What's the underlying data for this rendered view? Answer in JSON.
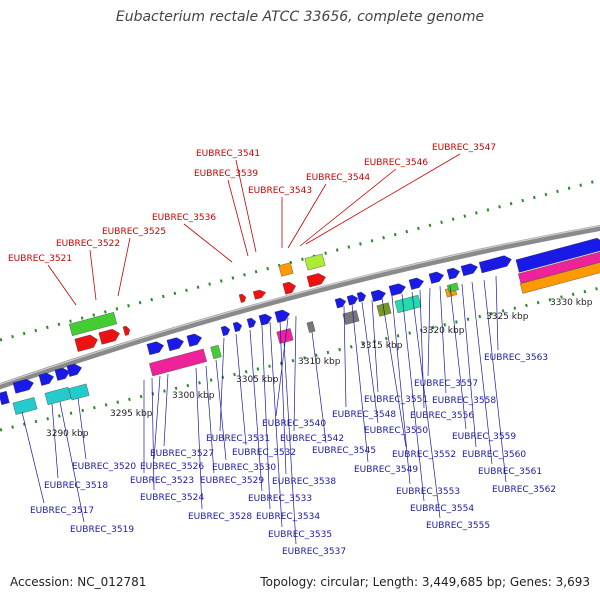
{
  "title": "Eubacterium rectale ATCC 33656, complete genome",
  "footer": {
    "accession": "Accession: NC_012781",
    "topology": "Topology: circular; Length: 3,449,685 bp; Genes: 3,693"
  },
  "colors": {
    "backbone": "#8a8a8a",
    "tick": "#2a8a2a",
    "label_forward": "#cc0000",
    "label_reverse": "#1a1aa8",
    "gene_blue": "#1a1ae6",
    "gene_red": "#ee1111",
    "gene_green": "#44cc33",
    "gene_cyan": "#22cccc",
    "gene_magenta": "#ee2299",
    "gene_orange": "#ff9900",
    "gene_lime": "#aaee33",
    "gene_gray": "#777777",
    "gene_olive": "#779922",
    "gene_teal": "#22ddaa"
  },
  "scale_ticks": [
    "3290 kbp",
    "3295 kbp",
    "3300 kbp",
    "3305 kbp",
    "3310 kbp",
    "3315 kbp",
    "3320 kbp",
    "3325 kbp",
    "3330 kbp"
  ],
  "forward_labels": [
    "EUBREC_3521",
    "EUBREC_3522",
    "EUBREC_3525",
    "EUBREC_3536",
    "EUBREC_3539",
    "EUBREC_3541",
    "EUBREC_3543",
    "EUBREC_3544",
    "EUBREC_3546",
    "EUBREC_3547"
  ],
  "reverse_labels": [
    "EUBREC_3517",
    "EUBREC_3518",
    "EUBREC_3519",
    "EUBREC_3520",
    "EUBREC_3523",
    "EUBREC_3524",
    "EUBREC_3526",
    "EUBREC_3527",
    "EUBREC_3528",
    "EUBREC_3529",
    "EUBREC_3530",
    "EUBREC_3531",
    "EUBREC_3532",
    "EUBREC_3533",
    "EUBREC_3534",
    "EUBREC_3535",
    "EUBREC_3537",
    "EUBREC_3538",
    "EUBREC_3540",
    "EUBREC_3542",
    "EUBREC_3545",
    "EUBREC_3548",
    "EUBREC_3549",
    "EUBREC_3550",
    "EUBREC_3551",
    "EUBREC_3552",
    "EUBREC_3553",
    "EUBREC_3554",
    "EUBREC_3555",
    "EUBREC_3556",
    "EUBREC_3557",
    "EUBREC_3558",
    "EUBREC_3559",
    "EUBREC_3560",
    "EUBREC_3561",
    "EUBREC_3562",
    "EUBREC_3563"
  ]
}
